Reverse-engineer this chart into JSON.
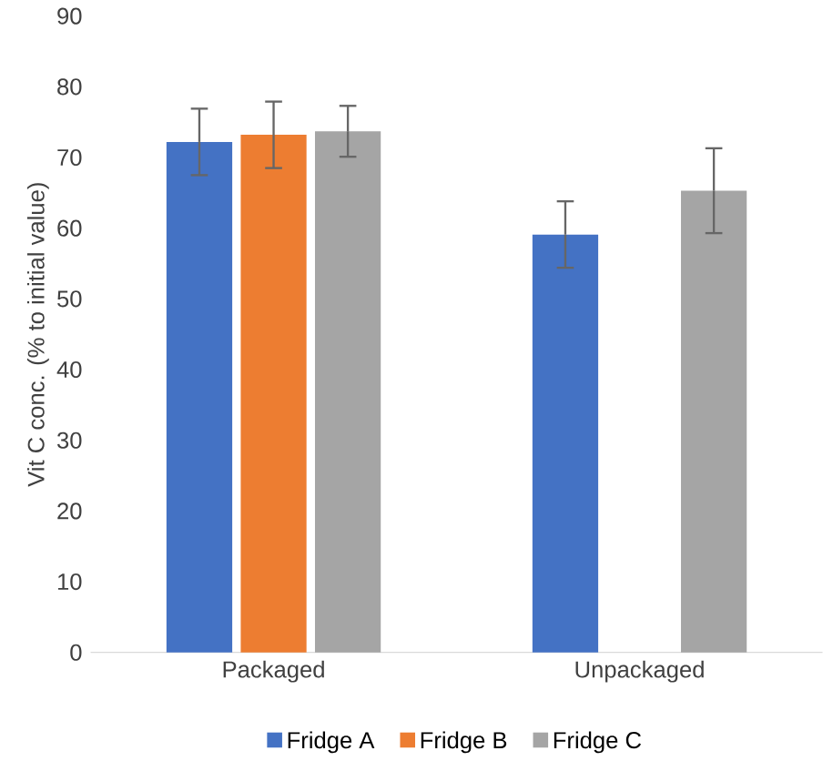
{
  "chart_data": {
    "type": "bar",
    "ylabel": "Vit C conc. (% to initial value)",
    "categories": [
      "Packaged",
      "Unpackaged"
    ],
    "series": [
      {
        "name": "Fridge A",
        "color": "#4472c4",
        "values": [
          72.2,
          59.1
        ],
        "errors": [
          4.7,
          4.7
        ]
      },
      {
        "name": "Fridge B",
        "color": "#ed7d31",
        "values": [
          73.2,
          null
        ],
        "errors": [
          4.7,
          null
        ]
      },
      {
        "name": "Fridge C",
        "color": "#a5a5a5",
        "values": [
          73.7,
          65.3
        ],
        "errors": [
          3.6,
          6.0
        ]
      }
    ],
    "ylim": [
      0,
      90
    ],
    "yticks": [
      0,
      10,
      20,
      30,
      40,
      50,
      60,
      70,
      80,
      90
    ],
    "legend": "bottom"
  }
}
